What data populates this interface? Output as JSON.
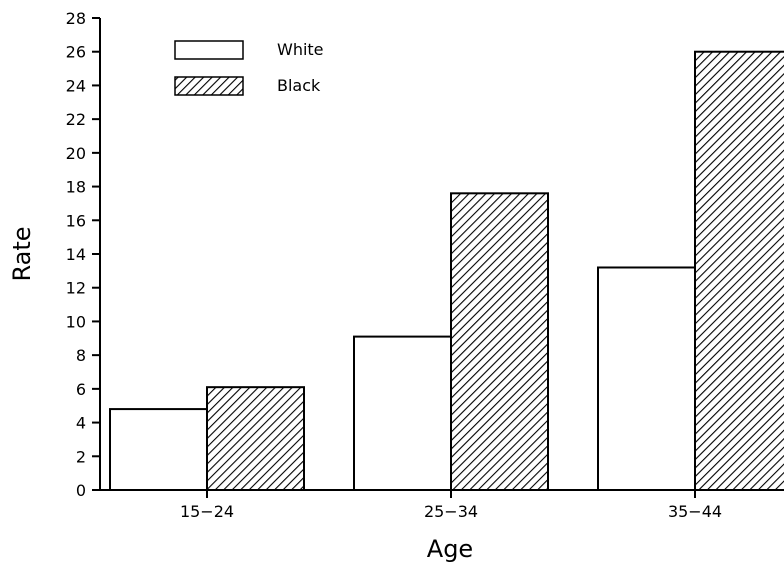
{
  "chart_data": {
    "type": "bar",
    "title": "",
    "xlabel": "Age",
    "ylabel": "Rate",
    "categories": [
      "15-24",
      "25-34",
      "35-44"
    ],
    "category_labels": [
      "15−24",
      "25−34",
      "35−44"
    ],
    "series": [
      {
        "name": "White",
        "values": [
          4.8,
          9.1,
          13.2
        ],
        "fill": "plain",
        "color": "#ffffff"
      },
      {
        "name": "Black",
        "values": [
          6.1,
          17.6,
          26.0
        ],
        "fill": "hatched",
        "color": "#000000"
      }
    ],
    "ylim": [
      0,
      28
    ],
    "yticks": [
      0,
      2,
      4,
      6,
      8,
      10,
      12,
      14,
      16,
      18,
      20,
      22,
      24,
      26,
      28
    ],
    "grid": false,
    "legend": "top-left"
  }
}
